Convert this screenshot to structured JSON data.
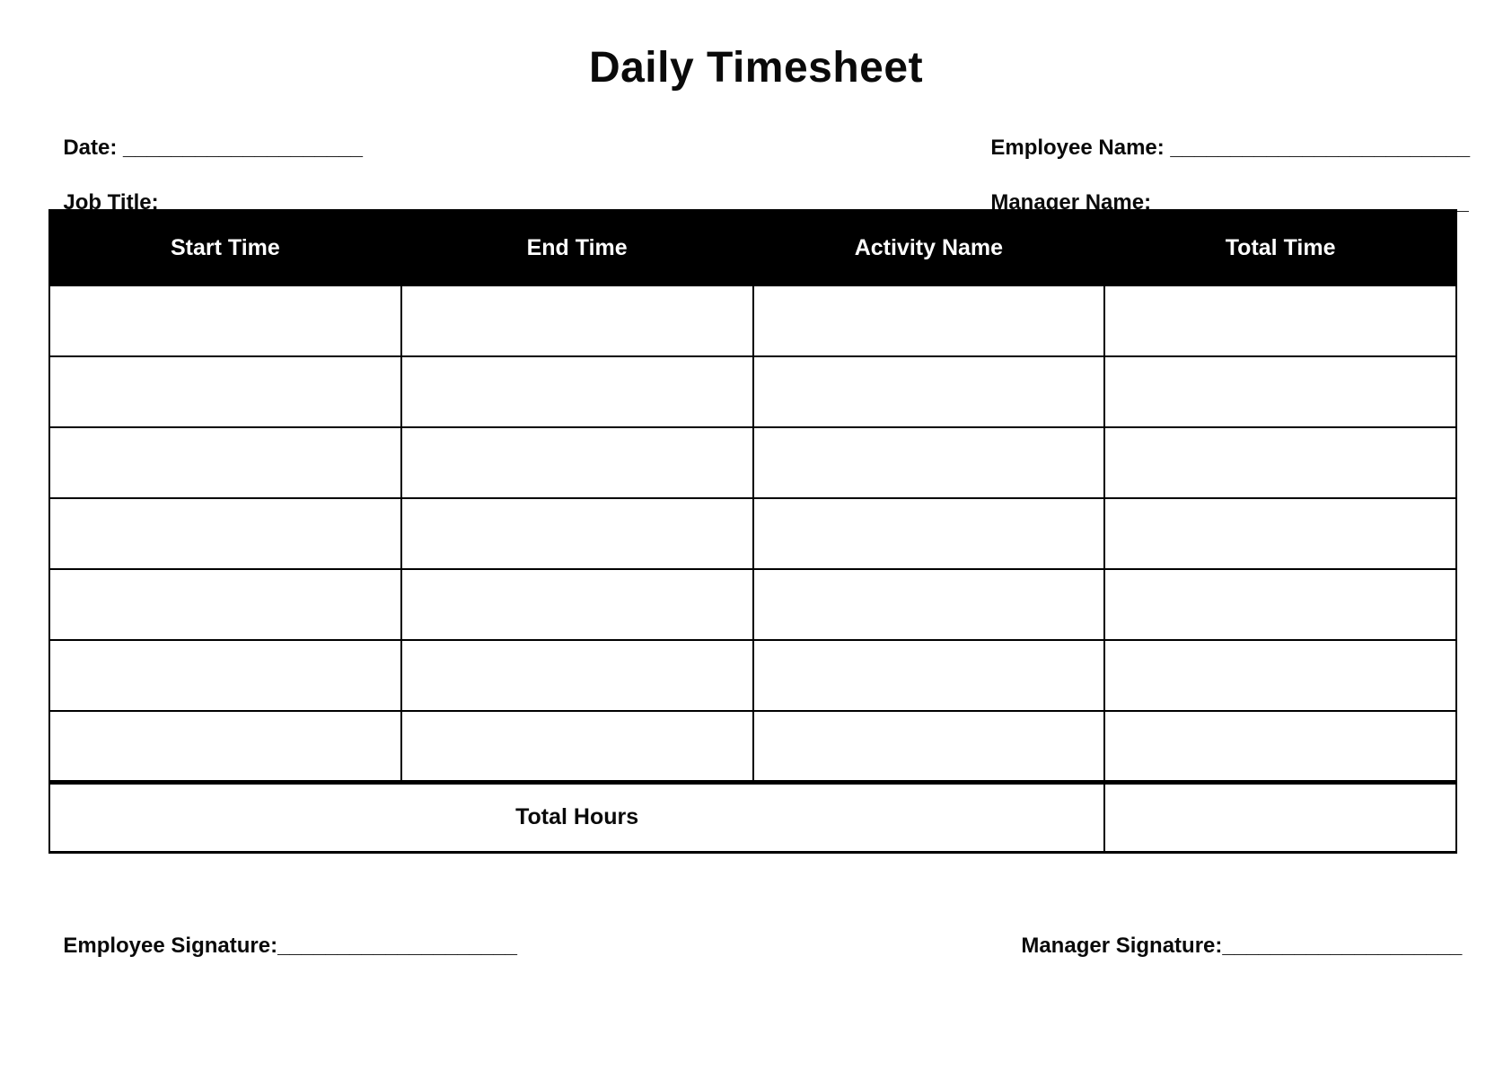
{
  "title": "Daily Timesheet",
  "fields": {
    "date": {
      "label": "Date: ",
      "line": "____________________"
    },
    "job_title": {
      "label": "Job Title:",
      "line": "___________________"
    },
    "employee_name": {
      "label": "Employee Name: ",
      "line": "_________________________"
    },
    "manager_name": {
      "label": "Manager Name: ",
      "line": "__________________________"
    }
  },
  "table": {
    "headers": [
      "Start Time",
      "End Time",
      "Activity Name",
      "Total Time"
    ],
    "row_count": 7,
    "total_label": "Total Hours"
  },
  "signatures": {
    "employee": {
      "label": "Employee Signature:",
      "line": "____________________"
    },
    "manager": {
      "label": "Manager Signature:",
      "line": "____________________"
    }
  },
  "colors": {
    "header_background": "#000000",
    "header_text": "#ffffff",
    "text": "#0a0a0a",
    "page_background": "#ffffff"
  }
}
